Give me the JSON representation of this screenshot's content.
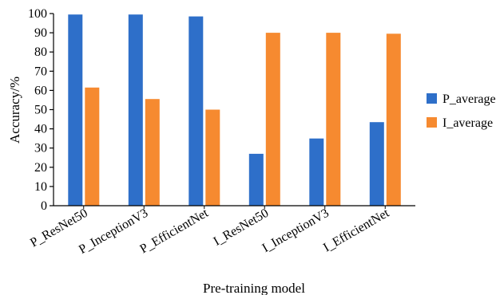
{
  "chart_data": {
    "type": "bar",
    "categories": [
      "P_ResNet50",
      "P_InceptionV3",
      "P_EfficientNet",
      "I_ResNet50",
      "I_InceptionV3",
      "I_EfficientNet"
    ],
    "series": [
      {
        "name": "P_average",
        "values": [
          99.5,
          99.5,
          98.5,
          27,
          35,
          43.5
        ],
        "color": "#2e6fc9"
      },
      {
        "name": "I_average",
        "values": [
          61.5,
          55.5,
          50,
          90,
          90,
          89.5
        ],
        "color": "#f68a30"
      }
    ],
    "xlabel": "Pre-training model",
    "ylabel": "Accuracy/%",
    "ylim": [
      0,
      100
    ],
    "yticks": [
      0,
      10,
      20,
      30,
      40,
      50,
      60,
      70,
      80,
      90,
      100
    ],
    "grid": false,
    "legend_position": "right"
  }
}
